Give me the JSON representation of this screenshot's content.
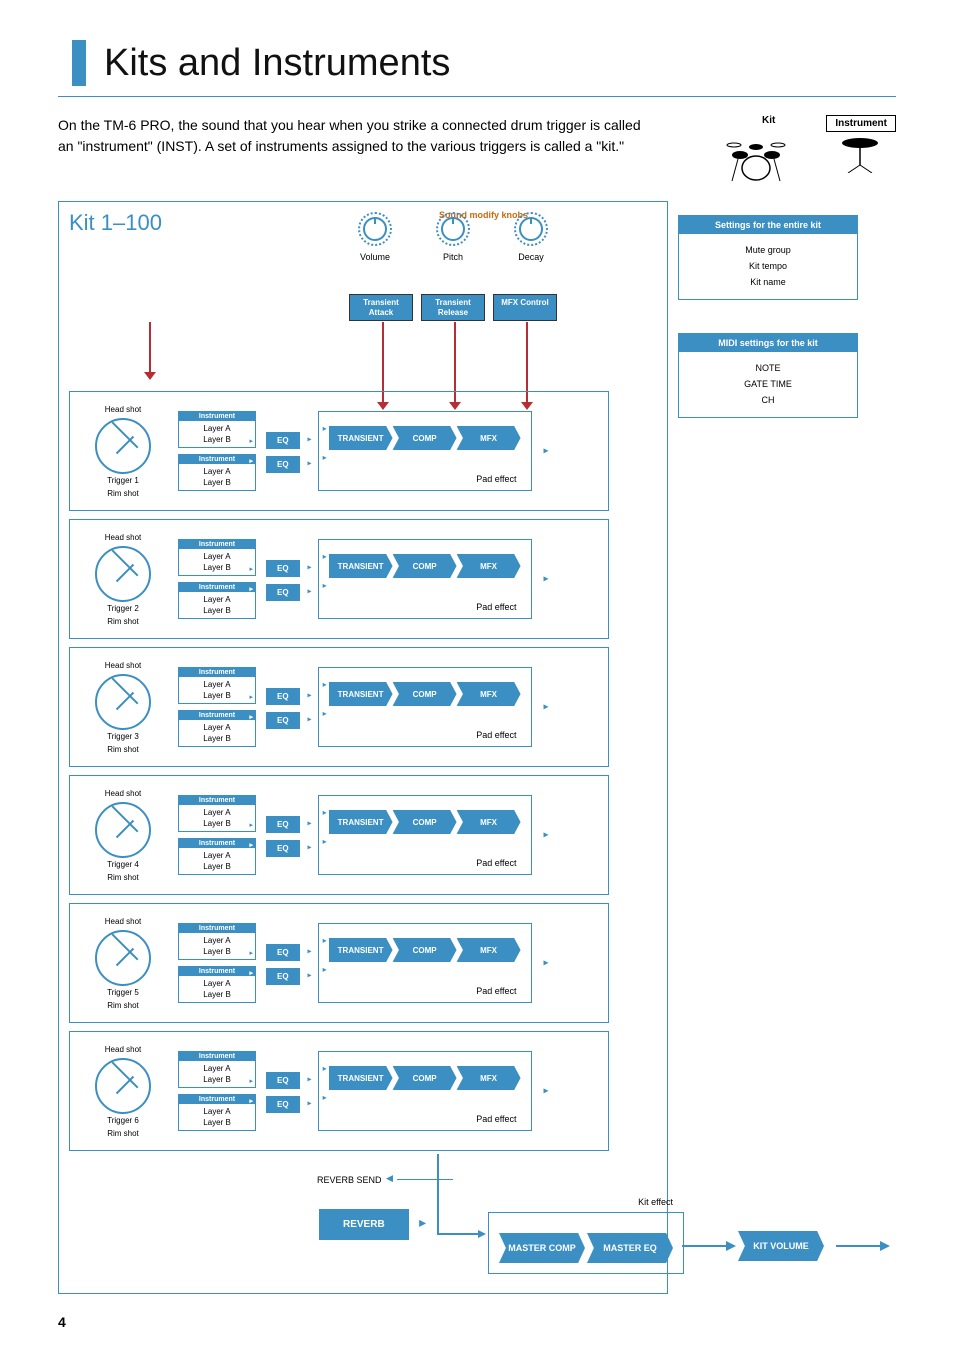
{
  "page": {
    "title": "Kits and Instruments",
    "intro": "On the TM-6 PRO, the sound that you hear when you strike a connected drum trigger is called an \"instrument\" (INST). A set of instruments assigned to the various triggers is called a \"kit.\"",
    "page_number": "4"
  },
  "top_right": {
    "kit_label": "Kit",
    "instrument_label": "Instrument"
  },
  "kit_panel": {
    "title": "Kit 1–100",
    "knobs_title": "Sound modify knobs",
    "knobs": [
      "Volume",
      "Pitch",
      "Decay"
    ],
    "knob_buttons": [
      "Transient Attack",
      "Transient Release",
      "MFX Control"
    ]
  },
  "side_settings": {
    "header": "Settings for the entire kit",
    "items": [
      "Mute group",
      "Kit tempo",
      "Kit name"
    ]
  },
  "side_midi": {
    "header": "MIDI settings for the kit",
    "items": [
      "NOTE",
      "GATE TIME",
      "CH"
    ]
  },
  "trigger_labels": {
    "head": "Head shot",
    "rim": "Rim shot",
    "instrument": "Instrument",
    "layer_a": "Layer A",
    "layer_b": "Layer B",
    "eq": "EQ",
    "transient": "TRANSIENT",
    "comp": "COMP",
    "mfx": "MFX",
    "pad_effect": "Pad effect"
  },
  "triggers": [
    "Trigger 1",
    "Trigger 2",
    "Trigger 3",
    "Trigger 4",
    "Trigger 5",
    "Trigger 6"
  ],
  "bottom": {
    "reverb_send": "REVERB SEND",
    "reverb": "REVERB",
    "kit_effect": "Kit effect",
    "master_comp": "MASTER COMP",
    "master_eq": "MASTER EQ",
    "kit_volume": "KIT VOLUME"
  },
  "colors": {
    "blue": "#3b8fc2",
    "red": "#b72d35",
    "orange": "#cb6a0f"
  }
}
